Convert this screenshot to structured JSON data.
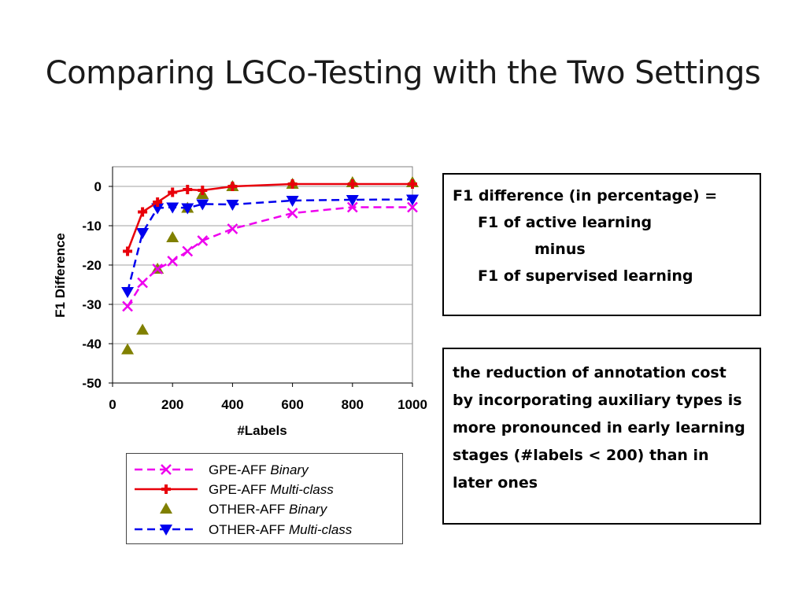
{
  "slide": {
    "title": "Comparing LGCo-Testing with the Two Settings"
  },
  "chart_data": {
    "type": "line",
    "xlabel": "#Labels",
    "ylabel": "F1 Difference",
    "xlim": [
      0,
      1000
    ],
    "ylim": [
      -50,
      5
    ],
    "x_ticks": [
      "0",
      "200",
      "400",
      "600",
      "800",
      "1000"
    ],
    "y_ticks": [
      "0",
      "-10",
      "-20",
      "-30",
      "-40",
      "-50"
    ],
    "grid": "horizontal",
    "legend_position": "bottom",
    "series": [
      {
        "name_main": "GPE-AFF",
        "name_mode": "Binary",
        "color": "#ee00ee",
        "marker": "x",
        "line": "dashed",
        "x": [
          50,
          100,
          150,
          200,
          250,
          300,
          400,
          600,
          800,
          1000
        ],
        "y": [
          -30.5,
          -24.5,
          -21,
          -19,
          -16.5,
          -13.8,
          -10.8,
          -6.8,
          -5.3,
          -5.3
        ]
      },
      {
        "name_main": "GPE-AFF",
        "name_mode": "Multi-class",
        "color": "#e8000b",
        "marker": "plus",
        "line": "solid",
        "x": [
          50,
          100,
          150,
          200,
          250,
          300,
          400,
          600,
          800,
          1000
        ],
        "y": [
          -16.5,
          -6.5,
          -4,
          -1.5,
          -0.8,
          -1,
          0,
          0.6,
          0.6,
          0.6
        ]
      },
      {
        "name_main": "OTHER-AFF",
        "name_mode": "Binary",
        "color": "#808000",
        "marker": "triangle-up",
        "line": "none",
        "x": [
          50,
          100,
          150,
          200,
          250,
          300,
          400,
          600,
          800,
          1000
        ],
        "y": [
          -41.5,
          -36.5,
          -21,
          -13,
          -5.5,
          -2,
          0,
          0.6,
          1,
          1
        ]
      },
      {
        "name_main": "OTHER-AFF",
        "name_mode": "Multi-class",
        "color": "#0000ee",
        "marker": "triangle-down",
        "line": "dashed",
        "x": [
          50,
          100,
          150,
          200,
          250,
          300,
          400,
          600,
          800,
          1000
        ],
        "y": [
          -26.8,
          -11.8,
          -5.5,
          -5.3,
          -5.5,
          -4.5,
          -4.6,
          -3.6,
          -3.4,
          -3.3
        ]
      }
    ]
  },
  "textbox_definition": {
    "line1": "F1 difference (in percentage) =",
    "line2": "F1 of active learning",
    "line3": "minus",
    "line4": "F1 of supervised learning"
  },
  "textbox_observation": {
    "text": "the reduction of annotation cost by incorporating auxiliary types is more pronounced in early learning stages (#labels < 200) than in later ones"
  }
}
